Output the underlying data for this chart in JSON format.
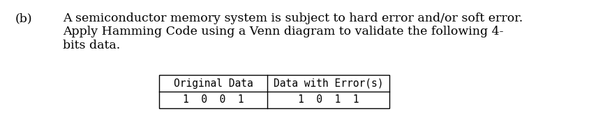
{
  "label_b": "(b)",
  "paragraph_line1": "A semiconductor memory system is subject to hard error and/or soft error.",
  "paragraph_line2": "Apply Hamming Code using a Venn diagram to validate the following 4-",
  "paragraph_line3": "bits data.",
  "table_header": [
    "Original Data",
    "Data with Error(s)"
  ],
  "table_row": [
    "1  0  0  1",
    "1  0  1  1"
  ],
  "bg_color": "#ffffff",
  "text_color": "#000000",
  "font_size_main": 12.5,
  "font_size_b": 12.5,
  "font_size_table_header": 10.5,
  "font_size_table_data": 10.5
}
